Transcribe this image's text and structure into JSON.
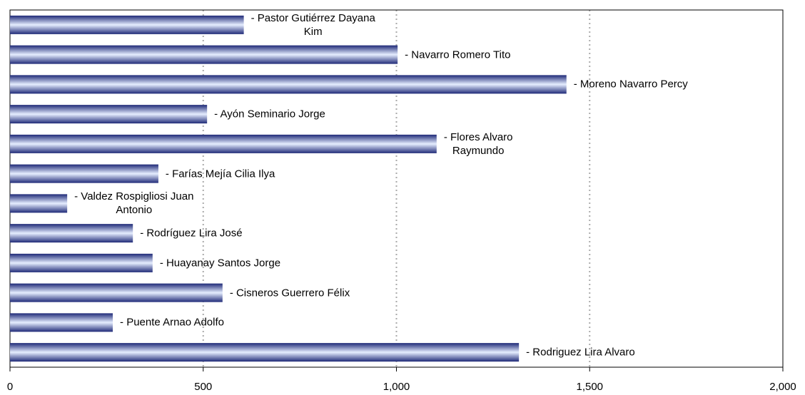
{
  "chart_data": {
    "type": "bar",
    "orientation": "horizontal",
    "categories": [
      "- Pastor Gutiérrez Dayana\nKim",
      "- Navarro Romero Tito",
      "- Moreno Navarro Percy",
      "- Ayón Seminario Jorge",
      "- Flores  Alvaro\nRaymundo",
      "- Farías Mejía Cilia Ilya",
      "- Valdez Rospigliosi Juan\nAntonio",
      "- Rodríguez Lira José",
      "- Huayanay Santos Jorge",
      "- Cisneros Guerrero Félix",
      "- Puente Arnao Adolfo",
      "- Rodriguez Lira Alvaro"
    ],
    "values": [
      605,
      1003,
      1440,
      510,
      1104,
      384,
      148,
      318,
      369,
      550,
      266,
      1317
    ],
    "color": "#1f2a78",
    "xlim": [
      0,
      2000
    ],
    "xticks": [
      0,
      500,
      {
        "value": 1000,
        "label": "1,000"
      },
      {
        "value": 1500,
        "label": "1,500"
      },
      {
        "value": 2000,
        "label": "2,000"
      }
    ],
    "grid": true
  }
}
